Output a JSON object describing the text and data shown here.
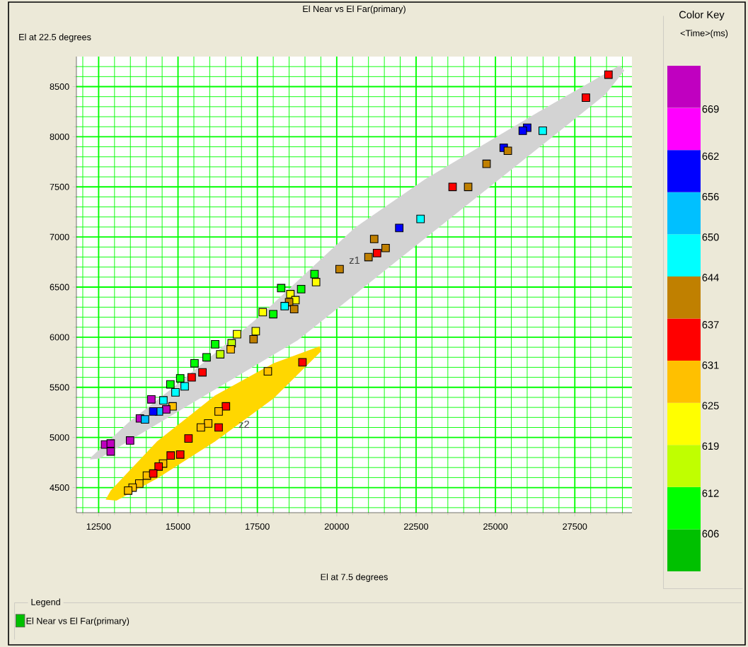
{
  "chart_data": {
    "type": "scatter",
    "title": "El Near vs El Far(primary)",
    "xlabel": "El at 7.5 degrees",
    "ylabel": "El at 22.5 degrees",
    "legend_title": "Legend",
    "clabel": "<Time>(ms)",
    "annotations": [
      "Color Key",
      "z1",
      "z2"
    ],
    "xlim": [
      11800,
      29300
    ],
    "ylim": [
      4250,
      8800
    ],
    "xticks": [
      {
        "value": 12000,
        "label": null
      },
      12500,
      {
        "value": 13000,
        "label": null
      },
      {
        "value": 13500,
        "label": null
      },
      {
        "value": 14000,
        "label": null
      },
      {
        "value": 14500,
        "label": null
      },
      15000,
      {
        "value": 15500,
        "label": null
      },
      {
        "value": 16000,
        "label": null
      },
      {
        "value": 16500,
        "label": null
      },
      {
        "value": 17000,
        "label": null
      },
      17500,
      {
        "value": 18000,
        "label": null
      },
      {
        "value": 18500,
        "label": null
      },
      {
        "value": 19000,
        "label": null
      },
      {
        "value": 19500,
        "label": null
      },
      20000,
      {
        "value": 20500,
        "label": null
      },
      {
        "value": 21000,
        "label": null
      },
      {
        "value": 21500,
        "label": null
      },
      {
        "value": 22000,
        "label": null
      },
      22500,
      {
        "value": 23000,
        "label": null
      },
      {
        "value": 23500,
        "label": null
      },
      {
        "value": 24000,
        "label": null
      },
      {
        "value": 24500,
        "label": null
      },
      25000,
      {
        "value": 25500,
        "label": null
      },
      {
        "value": 26000,
        "label": null
      },
      {
        "value": 26500,
        "label": null
      },
      {
        "value": 27000,
        "label": null
      },
      27500,
      {
        "value": 28000,
        "label": null
      },
      {
        "value": 28500,
        "label": null
      },
      {
        "value": 29000,
        "label": null
      }
    ],
    "yticks": [
      {
        "value": 4300,
        "label": null
      },
      {
        "value": 4400,
        "label": null
      },
      4500,
      {
        "value": 4600,
        "label": null
      },
      {
        "value": 4700,
        "label": null
      },
      {
        "value": 4800,
        "label": null
      },
      {
        "value": 4900,
        "label": null
      },
      5000,
      {
        "value": 5100,
        "label": null
      },
      {
        "value": 5200,
        "label": null
      },
      {
        "value": 5300,
        "label": null
      },
      {
        "value": 5400,
        "label": null
      },
      5500,
      {
        "value": 5600,
        "label": null
      },
      {
        "value": 5700,
        "label": null
      },
      {
        "value": 5800,
        "label": null
      },
      {
        "value": 5900,
        "label": null
      },
      6000,
      {
        "value": 6100,
        "label": null
      },
      {
        "value": 6200,
        "label": null
      },
      {
        "value": 6300,
        "label": null
      },
      {
        "value": 6400,
        "label": null
      },
      6500,
      {
        "value": 6600,
        "label": null
      },
      {
        "value": 6700,
        "label": null
      },
      {
        "value": 6800,
        "label": null
      },
      {
        "value": 6900,
        "label": null
      },
      7000,
      {
        "value": 7100,
        "label": null
      },
      {
        "value": 7200,
        "label": null
      },
      {
        "value": 7300,
        "label": null
      },
      {
        "value": 7400,
        "label": null
      },
      7500,
      {
        "value": 7600,
        "label": null
      },
      {
        "value": 7700,
        "label": null
      },
      {
        "value": 7800,
        "label": null
      },
      {
        "value": 7900,
        "label": null
      },
      8000,
      {
        "value": 8100,
        "label": null
      },
      {
        "value": 8200,
        "label": null
      },
      {
        "value": 8300,
        "label": null
      },
      {
        "value": 8400,
        "label": null
      },
      8500,
      {
        "value": 8600,
        "label": null
      },
      {
        "value": 8700,
        "label": null
      }
    ],
    "clim": [
      600,
      675
    ],
    "cticks": [
      606,
      612,
      619,
      625,
      631,
      637,
      644,
      650,
      656,
      662,
      669
    ],
    "colors": [
      "#00c000",
      "#00ff00",
      "#c0ff00",
      "#ffff00",
      "#ffc000",
      "#ff0000",
      "#c08000",
      "#00ffff",
      "#00c0ff",
      "#0000ff",
      "#ff00ff",
      "#c000c0"
    ],
    "grid": true,
    "legend": "bottom left",
    "series": [
      {
        "type": "area",
        "color": "#d3d3d3",
        "x": [
          12250,
          13440,
          15010,
          17540,
          20560,
          22800,
          26530,
          28900,
          29060,
          28460,
          25770,
          22800,
          18770,
          17270,
          15010,
          12520,
          12230
        ],
        "values": [
          4800,
          5150,
          5540,
          6200,
          7090,
          7580,
          8280,
          8710,
          8660,
          8420,
          7740,
          6990,
          5970,
          null,
          null,
          4790,
          4780
        ]
      },
      {
        "type": "area",
        "color": "#ffd700",
        "x": [
          12880,
          14340,
          16170,
          18010,
          19460,
          19510,
          18010,
          16170,
          14340,
          13060,
          12720
        ],
        "values": [
          4470,
          4960,
          5420,
          5740,
          5910,
          5860,
          5390,
          4960,
          4590,
          4370,
          4380
        ]
      },
      {
        "name": "El Near vs El Far(primary)",
        "marker": "square",
        "x": [
          28560,
          27850,
          26000,
          25860,
          26490,
          25260,
          25390,
          24720,
          23650,
          24140,
          22640,
          21970,
          21180,
          21540,
          21270,
          21000,
          20090,
          19300,
          19350,
          18880,
          18540,
          18700,
          18500,
          18660,
          18360,
          18250,
          17670,
          18000,
          17450,
          17380,
          16860,
          16690,
          16170,
          16330,
          16660,
          15900,
          15520,
          15770,
          15430,
          15070,
          14760,
          15210,
          14920,
          14540,
          14830,
          14630,
          14160,
          14400,
          14220,
          13800,
          13960,
          12700,
          12880,
          12880,
          13490,
          18920,
          17830,
          16510,
          16280,
          15950,
          15720,
          16280,
          15330,
          15070,
          14770,
          14530,
          14390,
          14020,
          14220,
          13780,
          13570,
          13430
        ],
        "values": [
          8620,
          8390,
          8090,
          8060,
          8060,
          7890,
          7860,
          7730,
          7500,
          7500,
          7180,
          7090,
          6980,
          6890,
          6840,
          6800,
          6680,
          6630,
          6550,
          6480,
          6430,
          6370,
          6350,
          6280,
          6310,
          6490,
          6250,
          6230,
          6060,
          5980,
          6030,
          5940,
          5930,
          5830,
          5880,
          5800,
          5740,
          5650,
          5600,
          5590,
          5530,
          5510,
          5450,
          5370,
          5310,
          5280,
          5380,
          5260,
          5260,
          5190,
          5180,
          4930,
          4940,
          4860,
          4970,
          5750,
          5660,
          5310,
          5260,
          5140,
          5100,
          5100,
          4990,
          4830,
          4820,
          4740,
          4710,
          4620,
          4640,
          4540,
          4500,
          4470
        ],
        "colors": [
          "#ff0000",
          "#ff0000",
          "#0000ff",
          "#0000ff",
          "#00ffff",
          "#0000ff",
          "#c08000",
          "#c08000",
          "#ff0000",
          "#c08000",
          "#00ffff",
          "#0000ff",
          "#c08000",
          "#c08000",
          "#ff0000",
          "#c08000",
          "#c08000",
          "#00ff00",
          "#ffff00",
          "#00ff00",
          "#ffff00",
          "#ffff00",
          "#c08000",
          "#c08000",
          "#00ffff",
          "#00ff00",
          "#ffff00",
          "#00ff00",
          "#ffff00",
          "#c08000",
          "#ffff00",
          "#c0ff00",
          "#00ff00",
          "#c0ff00",
          "#ffc000",
          "#00ff00",
          "#00ff00",
          "#ff0000",
          "#ff0000",
          "#00ff00",
          "#00ff00",
          "#00ffff",
          "#00ffff",
          "#00ffff",
          "#ffc000",
          "#c000c0",
          "#c000c0",
          "#00c0ff",
          "#0000ff",
          "#c000c0",
          "#00c0ff",
          "#c000c0",
          "#c000c0",
          "#c000c0",
          "#c000c0",
          "#ff0000",
          "#ffc000",
          "#ff0000",
          "#ffc000",
          "#ffc000",
          "#ffc000",
          "#ff0000",
          "#ff0000",
          "#ff0000",
          "#ff0000",
          "#ffc000",
          "#ff0000",
          "#ffc000",
          "#ff0000",
          "#ffc000",
          "#ffc000",
          "#ffc000"
        ]
      }
    ]
  }
}
